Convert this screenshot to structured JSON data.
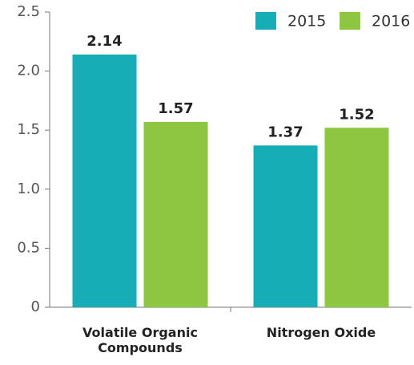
{
  "chart_data": {
    "type": "bar",
    "categories": [
      "Volatile Organic Compounds",
      "Nitrogen Oxide"
    ],
    "series": [
      {
        "name": "2015",
        "color": "#17adb6",
        "values": [
          2.14,
          1.37
        ]
      },
      {
        "name": "2016",
        "color": "#8dc63f",
        "values": [
          1.57,
          1.52
        ]
      }
    ],
    "ylim": [
      0,
      2.5
    ],
    "yticks": [
      0,
      0.5,
      {
        "value": 1,
        "label": "1.0"
      },
      1.5,
      {
        "value": 2,
        "label": "2.0"
      },
      2.5
    ],
    "legend": "top-right"
  }
}
